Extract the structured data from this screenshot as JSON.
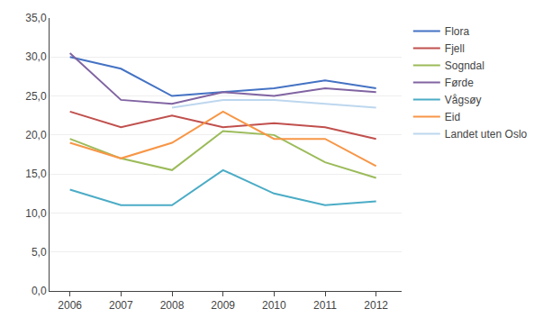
{
  "chart_data": {
    "type": "line",
    "x": [
      2006,
      2007,
      2008,
      2009,
      2010,
      2011,
      2012
    ],
    "series": [
      {
        "name": "Flora",
        "color": "#4472C4",
        "values": [
          30.0,
          28.5,
          25.0,
          25.5,
          26.0,
          27.0,
          26.0
        ]
      },
      {
        "name": "Fjell",
        "color": "#C0504D",
        "values": [
          23.0,
          21.0,
          22.5,
          21.0,
          21.5,
          21.0,
          19.5
        ]
      },
      {
        "name": "Sogndal",
        "color": "#9BBB59",
        "values": [
          19.5,
          17.0,
          15.5,
          20.5,
          20.0,
          16.5,
          14.5
        ]
      },
      {
        "name": "Førde",
        "color": "#8064A2",
        "values": [
          30.5,
          24.5,
          24.0,
          25.5,
          25.0,
          26.0,
          25.5
        ]
      },
      {
        "name": "Vågsøy",
        "color": "#4BACC6",
        "values": [
          13.0,
          11.0,
          11.0,
          15.5,
          12.5,
          11.0,
          11.5
        ]
      },
      {
        "name": "Eid",
        "color": "#F79646",
        "values": [
          19.0,
          17.0,
          19.0,
          23.0,
          19.5,
          19.5,
          16.0
        ]
      },
      {
        "name": "Landet uten Oslo",
        "color": "#BDD7EE",
        "values": [
          null,
          null,
          23.5,
          24.5,
          24.5,
          24.0,
          23.5
        ]
      }
    ],
    "xlim": [
      2005.6,
      2012.5
    ],
    "xticks": [
      2006,
      2007,
      2008,
      2009,
      2010,
      2011,
      2012
    ],
    "ylim": [
      0,
      35
    ],
    "yticks": [
      {
        "value": 0.0,
        "label": "0,0"
      },
      {
        "value": 5.0,
        "label": "5,0"
      },
      {
        "value": 10.0,
        "label": "10,0"
      },
      {
        "value": 15.0,
        "label": "15,0"
      },
      {
        "value": 20.0,
        "label": "20,0"
      },
      {
        "value": 25.0,
        "label": "25,0"
      },
      {
        "value": 30.0,
        "label": "30,0"
      },
      {
        "value": 35.0,
        "label": "35,0"
      }
    ],
    "grid": true,
    "legend": "right"
  }
}
